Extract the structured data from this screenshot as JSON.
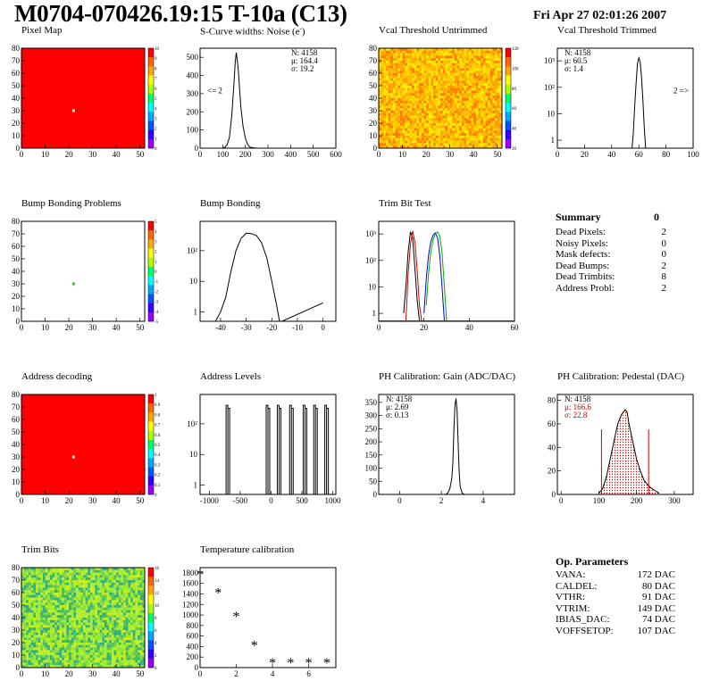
{
  "header": {
    "title": "M0704-070426.19:15 T-10a (C13)",
    "date": "Fri Apr 27 02:01:26 2007"
  },
  "summary": {
    "title": "Summary",
    "title_value": "0",
    "rows": [
      {
        "label": "Dead Pixels:",
        "value": "2"
      },
      {
        "label": "Noisy Pixels:",
        "value": "0"
      },
      {
        "label": "Mask defects:",
        "value": "0"
      },
      {
        "label": "Dead Bumps:",
        "value": "2"
      },
      {
        "label": "Dead Trimbits:",
        "value": "8"
      },
      {
        "label": "Address Probl:",
        "value": "2"
      }
    ]
  },
  "op_params": {
    "title": "Op. Parameters",
    "rows": [
      {
        "label": "VANA:",
        "value": "172 DAC"
      },
      {
        "label": "CALDEL:",
        "value": "80 DAC"
      },
      {
        "label": "VTHR:",
        "value": "91 DAC"
      },
      {
        "label": "VTRIM:",
        "value": "149 DAC"
      },
      {
        "label": "IBIAS_DAC:",
        "value": "74 DAC"
      },
      {
        "label": "VOFFSETOP:",
        "value": "107 DAC"
      }
    ]
  },
  "chart_data": [
    {
      "id": "pixel_map",
      "type": "heatmap",
      "title": "Pixel Map",
      "xlim": [
        0,
        52
      ],
      "ylim": [
        0,
        80
      ],
      "xticks": [
        0,
        10,
        20,
        30,
        40,
        50
      ],
      "yticks": [
        0,
        10,
        20,
        30,
        40,
        50,
        60,
        70,
        80
      ],
      "fill": "#ff0000",
      "special_pixels": [
        {
          "x": 22,
          "y": 30,
          "color": "#ffffff"
        }
      ],
      "palette_ticks": [
        "10",
        "9",
        "8",
        "7",
        "6",
        "5",
        "4",
        "3",
        "2",
        "1",
        "0"
      ]
    },
    {
      "id": "scurve_noise",
      "type": "line",
      "title": "S-Curve widths: Noise (e",
      "title_sup": "-",
      "title_close": ")",
      "xlim": [
        0,
        600
      ],
      "ylim": [
        0,
        550
      ],
      "xticks": [
        0,
        100,
        200,
        300,
        400,
        500,
        600
      ],
      "yticks": [
        0,
        100,
        200,
        300,
        400,
        500
      ],
      "stats": [
        "N: 4158",
        "μ: 164.4",
        "σ: 19.2"
      ],
      "overflow_label": "<= 2",
      "x": [
        100,
        110,
        120,
        130,
        140,
        150,
        155,
        160,
        165,
        170,
        175,
        180,
        190,
        200,
        210,
        220,
        230,
        240,
        250,
        260
      ],
      "y": [
        0,
        5,
        20,
        60,
        180,
        360,
        470,
        525,
        480,
        410,
        320,
        230,
        120,
        55,
        20,
        6,
        3,
        1,
        0,
        0
      ]
    },
    {
      "id": "vcal_untrimmed",
      "type": "heatmap",
      "title": "Vcal Threshold Untrimmed",
      "xlim": [
        0,
        52
      ],
      "ylim": [
        0,
        80
      ],
      "xticks": [
        0,
        10,
        20,
        30,
        40,
        50
      ],
      "yticks": [
        0,
        10,
        20,
        30,
        40,
        50,
        60,
        70,
        80
      ],
      "fill": "noise-orange",
      "palette_ticks": [
        "120",
        "100",
        "80",
        "60",
        "40",
        "20"
      ]
    },
    {
      "id": "vcal_trimmed",
      "type": "line",
      "title": "Vcal Threshold Trimmed",
      "xlim": [
        0,
        100
      ],
      "ylim": [
        0.5,
        3000
      ],
      "log_y": true,
      "xticks": [
        0,
        20,
        40,
        60,
        80,
        100
      ],
      "yticks": [
        "1",
        "10",
        "10²",
        "10³"
      ],
      "stats": [
        "N: 4158",
        "μ: 60.5",
        "σ:  1.4"
      ],
      "overflow_label": "2 =>",
      "x": [
        55,
        56,
        57,
        58,
        59,
        60,
        61,
        62,
        63,
        64,
        65
      ],
      "y": [
        0.5,
        2,
        20,
        150,
        800,
        1300,
        900,
        250,
        30,
        3,
        0.5
      ]
    },
    {
      "id": "bump_problems",
      "type": "heatmap",
      "title": "Bump Bonding Problems",
      "xlim": [
        0,
        52
      ],
      "ylim": [
        0,
        80
      ],
      "xticks": [
        0,
        10,
        20,
        30,
        40,
        50
      ],
      "yticks": [
        0,
        10,
        20,
        30,
        40,
        50,
        60,
        70,
        80
      ],
      "fill": "#ffffff",
      "special_pixels": [
        {
          "x": 22,
          "y": 30,
          "color": "#22cc00"
        }
      ],
      "palette_ticks": [
        "5",
        "4",
        "3",
        "2",
        "1",
        "0",
        "-1",
        "-2",
        "-3",
        "-4",
        "-5"
      ]
    },
    {
      "id": "bump_bonding",
      "type": "line",
      "title": "Bump Bonding",
      "xlim": [
        -48,
        5
      ],
      "ylim": [
        0.5,
        900
      ],
      "log_y": true,
      "xticks": [
        -40,
        -30,
        -20,
        -10,
        0
      ],
      "yticks": [
        "1",
        "10",
        "10²"
      ],
      "x": [
        -42,
        -40,
        -38,
        -36,
        -34,
        -32,
        -30,
        -28,
        -26,
        -24,
        -22,
        -20,
        -18,
        -17,
        -16,
        0
      ],
      "y": [
        0.5,
        1,
        3,
        20,
        100,
        250,
        370,
        360,
        310,
        180,
        60,
        10,
        1.5,
        0.5,
        0.5,
        2
      ]
    },
    {
      "id": "trim_bit_test",
      "type": "line",
      "title": "Trim Bit Test",
      "xlim": [
        0,
        60
      ],
      "ylim": [
        0.5,
        3000
      ],
      "log_y": true,
      "xticks": [
        0,
        20,
        40,
        60
      ],
      "yticks": [
        "1",
        "10",
        "10²",
        "10³"
      ],
      "series": [
        {
          "color": "#000000",
          "x": [
            11,
            12,
            13,
            14,
            15,
            16,
            17,
            18
          ],
          "y": [
            1,
            10,
            200,
            1200,
            700,
            50,
            3,
            0.5
          ]
        },
        {
          "color": "#cc0000",
          "x": [
            12,
            13,
            14,
            15,
            16,
            17,
            18,
            19
          ],
          "y": [
            0.5,
            30,
            400,
            1300,
            500,
            40,
            2,
            0.5
          ]
        },
        {
          "color": "#0000cc",
          "x": [
            20,
            21,
            22,
            23,
            24,
            25,
            26,
            27,
            28,
            29
          ],
          "y": [
            1,
            20,
            150,
            500,
            900,
            1100,
            700,
            150,
            10,
            0.5
          ]
        },
        {
          "color": "#00aa00",
          "x": [
            21,
            22,
            23,
            24,
            25,
            26,
            27,
            28,
            29,
            30
          ],
          "y": [
            2,
            30,
            200,
            600,
            1000,
            1200,
            800,
            200,
            10,
            0.5
          ]
        }
      ]
    },
    {
      "id": "address_decoding",
      "type": "heatmap",
      "title": "Address decoding",
      "xlim": [
        0,
        52
      ],
      "ylim": [
        0,
        80
      ],
      "xticks": [
        0,
        10,
        20,
        30,
        40,
        50
      ],
      "yticks": [
        0,
        10,
        20,
        30,
        40,
        50,
        60,
        70,
        80
      ],
      "fill": "#ff0000",
      "special_pixels": [
        {
          "x": 22,
          "y": 30,
          "color": "#ffffff"
        }
      ],
      "palette_ticks": [
        "1",
        "0.9",
        "0.8",
        "0.7",
        "0.6",
        "0.5",
        "0.4",
        "0.3",
        "0.2",
        "0.1",
        "0"
      ]
    },
    {
      "id": "address_levels",
      "type": "line",
      "title": "Address Levels",
      "xlim": [
        -1150,
        1050
      ],
      "ylim": [
        0.5,
        900
      ],
      "log_y": true,
      "xticks": [
        -1000,
        -500,
        0,
        500,
        1000
      ],
      "yticks": [
        "1",
        "10",
        "10²"
      ],
      "peaks": [
        -700,
        -50,
        130,
        330,
        550,
        720,
        900
      ],
      "peak_height": 400
    },
    {
      "id": "ph_gain",
      "type": "line",
      "title": "PH Calibration: Gain (ADC/DAC)",
      "xlim": [
        -1,
        5.5
      ],
      "ylim": [
        0,
        380
      ],
      "xticks": [
        0,
        2,
        4
      ],
      "yticks": [
        0,
        50,
        100,
        150,
        200,
        250,
        300,
        350
      ],
      "stats": [
        "N: 4158",
        "μ: 2.69",
        "σ: 0.13"
      ],
      "x": [
        2.2,
        2.3,
        2.4,
        2.5,
        2.55,
        2.6,
        2.65,
        2.7,
        2.75,
        2.8,
        2.85,
        2.9,
        3.0,
        3.1
      ],
      "y": [
        0,
        5,
        20,
        60,
        120,
        250,
        340,
        365,
        320,
        200,
        90,
        30,
        5,
        0
      ]
    },
    {
      "id": "ph_pedestal",
      "type": "line",
      "title": "PH Calibration: Pedestal (DAC)",
      "xlim": [
        -10,
        350
      ],
      "ylim": [
        0,
        85
      ],
      "xticks": [
        0,
        100,
        200,
        300
      ],
      "yticks": [
        0,
        20,
        40,
        60,
        80
      ],
      "stats": [
        "N: 4158",
        "μ: 166.6",
        "σ: 22.8"
      ],
      "stats_colors": [
        "#000000",
        "#cc0000",
        "#cc0000"
      ],
      "cut_lines": [
        107,
        232
      ],
      "x": [
        100,
        110,
        120,
        130,
        140,
        150,
        160,
        170,
        175,
        180,
        190,
        200,
        210,
        220,
        230,
        240,
        250,
        260
      ],
      "y": [
        1,
        5,
        15,
        30,
        45,
        60,
        68,
        72,
        70,
        60,
        45,
        30,
        20,
        12,
        8,
        5,
        3,
        1
      ]
    },
    {
      "id": "trim_bits",
      "type": "heatmap",
      "title": "Trim Bits",
      "xlim": [
        0,
        52
      ],
      "ylim": [
        0,
        80
      ],
      "xticks": [
        0,
        10,
        20,
        30,
        40,
        50
      ],
      "yticks": [
        0,
        10,
        20,
        30,
        40,
        50,
        60,
        70,
        80
      ],
      "fill": "noise-green",
      "palette_ticks": [
        "16",
        "14",
        "12",
        "10",
        "8",
        "6",
        "4",
        "2",
        "0"
      ]
    },
    {
      "id": "temperature_calibration",
      "type": "scatter",
      "title": "Temperature calibration",
      "xlim": [
        0,
        7.5
      ],
      "ylim": [
        0,
        1900
      ],
      "xticks": [
        0,
        2,
        4,
        6
      ],
      "yticks": [
        0,
        200,
        400,
        600,
        800,
        1000,
        1200,
        1400,
        1600,
        1800
      ],
      "x": [
        0,
        1,
        2,
        3,
        4,
        5,
        6,
        7
      ],
      "y": [
        1780,
        1430,
        980,
        430,
        100,
        100,
        100,
        100
      ]
    }
  ]
}
